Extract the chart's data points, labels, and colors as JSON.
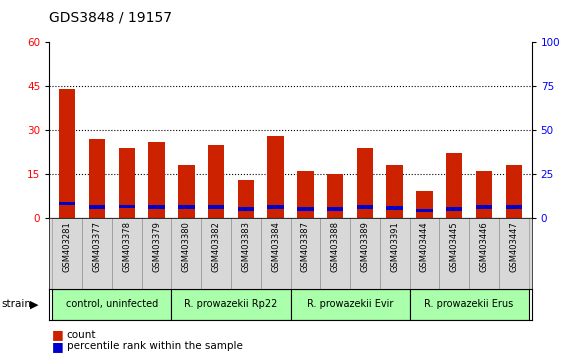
{
  "title": "GDS3848 / 19157",
  "samples": [
    "GSM403281",
    "GSM403377",
    "GSM403378",
    "GSM403379",
    "GSM403380",
    "GSM403382",
    "GSM403383",
    "GSM403384",
    "GSM403387",
    "GSM403388",
    "GSM403389",
    "GSM403391",
    "GSM403444",
    "GSM403445",
    "GSM403446",
    "GSM403447"
  ],
  "count_values": [
    44,
    27,
    24,
    26,
    18,
    25,
    13,
    28,
    16,
    15,
    24,
    18,
    9,
    22,
    16,
    18
  ],
  "percentile_values": [
    8.0,
    6.0,
    6.5,
    6.0,
    6.0,
    6.0,
    5.0,
    6.0,
    5.0,
    5.0,
    6.0,
    5.5,
    4.0,
    5.0,
    6.0,
    6.0
  ],
  "groups": [
    {
      "label": "control, uninfected",
      "start": 0,
      "end": 3,
      "color": "#aaffaa"
    },
    {
      "label": "R. prowazekii Rp22",
      "start": 4,
      "end": 7,
      "color": "#aaffaa"
    },
    {
      "label": "R. prowazekii Evir",
      "start": 8,
      "end": 11,
      "color": "#aaffaa"
    },
    {
      "label": "R. prowazekii Erus",
      "start": 12,
      "end": 15,
      "color": "#aaffaa"
    }
  ],
  "ylim_left": [
    0,
    60
  ],
  "ylim_right": [
    0,
    100
  ],
  "yticks_left": [
    0,
    15,
    30,
    45,
    60
  ],
  "yticks_right": [
    0,
    25,
    50,
    75,
    100
  ],
  "bar_width": 0.55,
  "count_color": "#cc2200",
  "percentile_color": "#0000cc",
  "grid_color": "black",
  "xtick_bg": "#d8d8d8",
  "plot_bg": "white"
}
